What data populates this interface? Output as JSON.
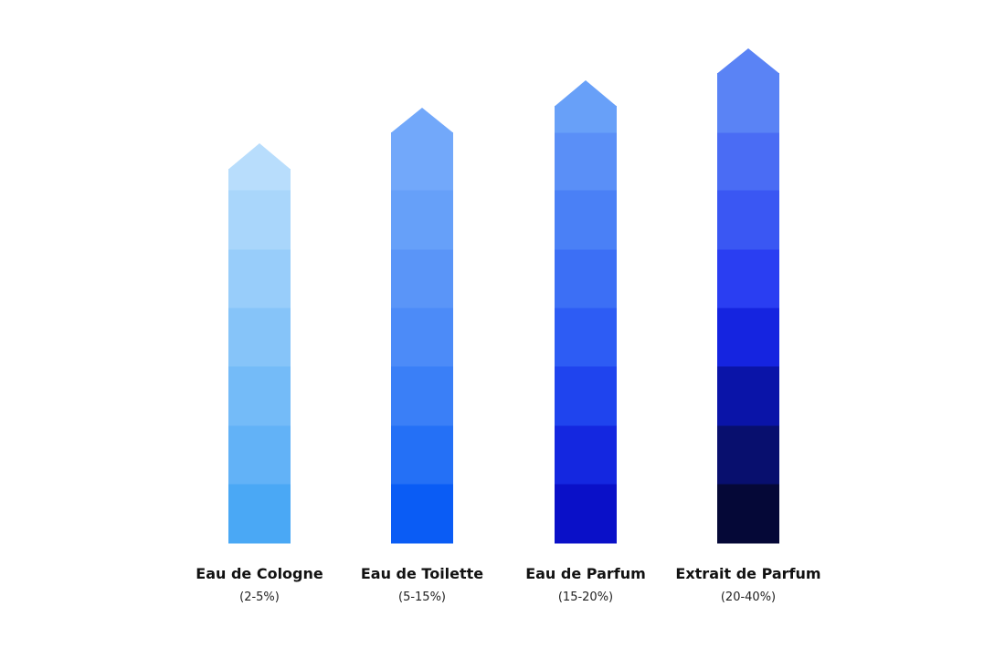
{
  "items": [
    {
      "name": "Eau de Cologne",
      "range": "(2-5%)"
    },
    {
      "name": "Eau de Toilette",
      "range": "(5-15%)"
    },
    {
      "name": "Eau de Parfum",
      "range": "(15-20%)"
    },
    {
      "name": "Extrait de Parfum",
      "range": "(20-40%)"
    }
  ]
}
